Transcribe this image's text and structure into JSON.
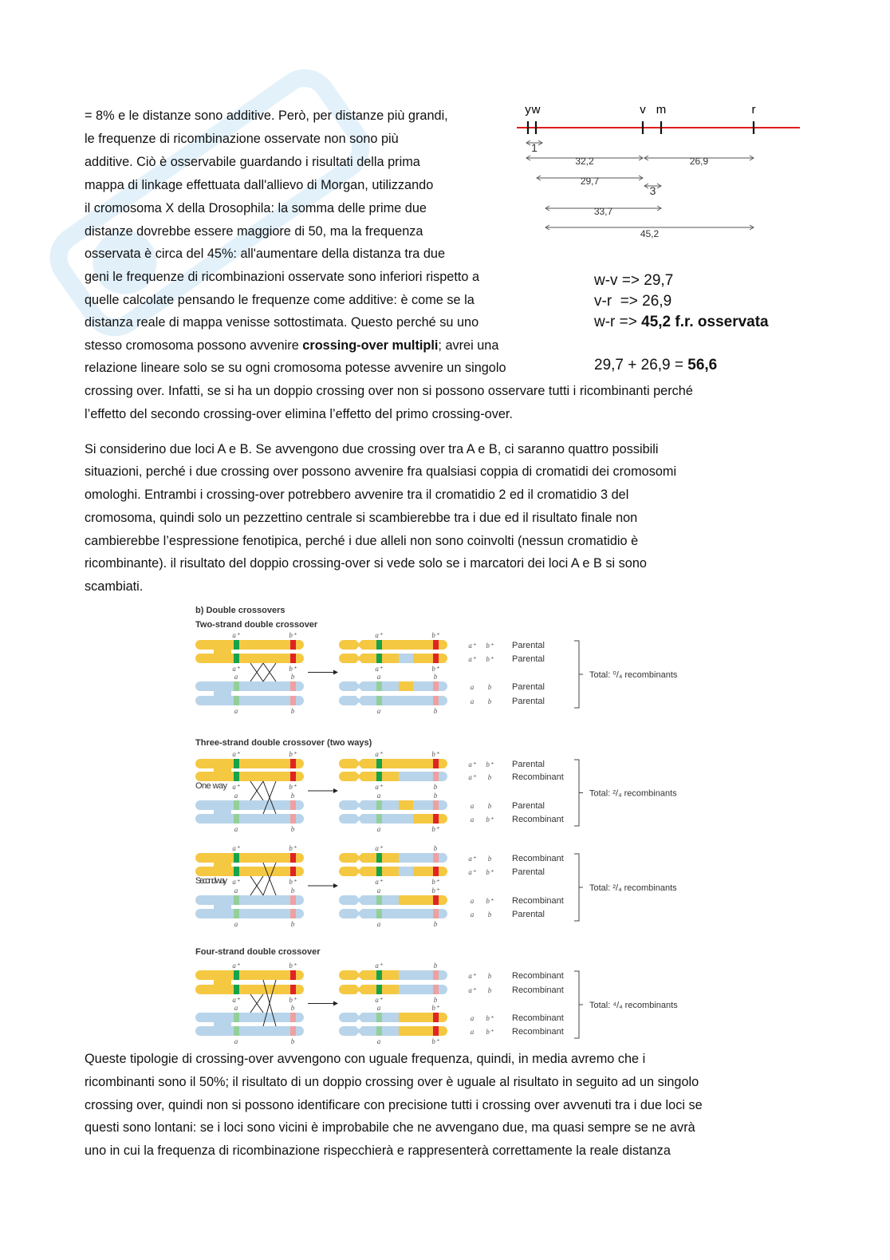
{
  "paragraphs": [
    {
      "lines": [
        [
          {
            "t": "= 8% e le distanze sono additive. Però, per distanze più grandi,"
          }
        ],
        [
          {
            "t": "le frequenze di ricombinazione osservate non sono più"
          }
        ],
        [
          {
            "t": "additive. Ciò è osservabile guardando i risultati della prima"
          }
        ],
        [
          {
            "t": "mappa di linkage effettuata dall'allievo di Morgan, utilizzando"
          }
        ],
        [
          {
            "t": "il cromosoma X della Drosophila: la somma delle prime due"
          }
        ],
        [
          {
            "t": "distanze dovrebbe essere maggiore di 50, ma la frequenza"
          }
        ],
        [
          {
            "t": "osservata è circa del 45%: all'aumentare della distanza tra due"
          }
        ],
        [
          {
            "t": "geni le frequenze di ricombinazioni osservate sono inferiori rispetto a"
          }
        ],
        [
          {
            "t": "quelle calcolate pensando le frequenze come additive: è come se la"
          }
        ],
        [
          {
            "t": "distanza reale di mappa venisse sottostimata. Questo perché su uno"
          }
        ],
        [
          {
            "t": "stesso cromosoma possono avvenire "
          },
          {
            "t": "crossing-over multipli",
            "b": true
          },
          {
            "t": "; avrei una"
          }
        ],
        [
          {
            "t": "relazione lineare solo se su ogni cromosoma potesse avvenire un singolo"
          }
        ],
        [
          {
            "t": "crossing over. Infatti, se si ha un doppio crossing over non si possono osservare tutti i ricombinanti perché"
          }
        ],
        [
          {
            "t": "l’effetto del secondo crossing-over elimina l’effetto del primo crossing-over."
          }
        ]
      ]
    },
    {
      "lines": [
        [
          {
            "t": "Si considerino due loci A e B. Se avvengono due crossing over tra A e B, ci saranno quattro possibili"
          }
        ],
        [
          {
            "t": "situazioni, perché i due crossing over possono avvenire fra qualsiasi coppia di cromatidi dei cromosomi"
          }
        ],
        [
          {
            "t": "omologhi. Entrambi i crossing-over potrebbero avvenire tra il cromatidio 2 ed il cromatidio 3 del"
          }
        ],
        [
          {
            "t": "cromosoma, quindi solo un pezzettino centrale si scambierebbe tra i due ed il risultato finale non"
          }
        ],
        [
          {
            "t": "cambierebbe l’espressione fenotipica, perché i due alleli non sono coinvolti (nessun cromatidio è"
          }
        ],
        [
          {
            "t": "ricombinante). il risultato del doppio crossing-over si vede solo se i marcatori dei loci A e B si sono"
          }
        ],
        [
          {
            "t": "scambiati."
          }
        ]
      ]
    },
    {
      "lines": [
        [
          {
            "t": "Queste tipologie di crossing-over avvengono con uguale frequenza, quindi, in media avremo che i"
          }
        ],
        [
          {
            "t": "ricombinanti sono il 50%; il risultato di un doppio crossing over è uguale al risultato in seguito ad un singolo"
          }
        ],
        [
          {
            "t": "crossing over, quindi non si possono identificare con precisione tutti i crossing over avvenuti tra i due loci se"
          }
        ],
        [
          {
            "t": "questi sono lontani: se i loci sono vicini è improbabile che ne avvengano due, ma quasi sempre se ne avrà"
          }
        ],
        [
          {
            "t": "uno in cui la frequenza di ricombinazione rispecchierà e rappresenterà correttamente la reale distanza"
          }
        ]
      ]
    }
  ],
  "linkage_map": {
    "loci": [
      "y",
      "w",
      "v",
      "m",
      "r"
    ],
    "distances": [
      {
        "from": "y",
        "to": "w",
        "label": "1"
      },
      {
        "from": "y",
        "to": "v",
        "label": "32,2"
      },
      {
        "from": "v",
        "to": "r",
        "label": "26,9"
      },
      {
        "from": "w",
        "to": "v",
        "label": "29,7"
      },
      {
        "from": "v",
        "to": "m",
        "label": "3"
      },
      {
        "from": "w",
        "to": "m",
        "label": "33,7"
      },
      {
        "from": "w",
        "to": "r",
        "label": "45,2"
      }
    ],
    "line_color": "#e01b1b"
  },
  "formulas": [
    [
      {
        "t": "w-v => 29,7"
      }
    ],
    [
      {
        "t": "v-r  => 26,9"
      }
    ],
    [
      {
        "t": "w-r => "
      },
      {
        "t": "45,2 f.r. osservata",
        "b": true
      }
    ],
    [
      {
        "t": "29,7 + 26,9 = "
      },
      {
        "t": "56,6",
        "b": true
      }
    ]
  ],
  "figure": {
    "title": "b) Double crossovers",
    "colors": {
      "yellow": "#f5c842",
      "blue": "#b8d4ea",
      "green": "#17a34a",
      "pale_green": "#93cf9a",
      "red": "#e02424",
      "pale_red": "#f0a0a0"
    },
    "panels": [
      {
        "title": "Two-strand double crossover",
        "way_label": "",
        "crossovers": [
          [
            2,
            3
          ],
          [
            2,
            3
          ]
        ],
        "pre_labels_top": [
          "a⁺",
          "b⁺"
        ],
        "pre_labels_mid": [
          [
            "a⁺",
            "b⁺"
          ],
          [
            "a",
            "b"
          ]
        ],
        "pre_labels_bottom": [
          "a",
          "b"
        ],
        "post": [
          {
            "a": "a⁺",
            "b": "b⁺",
            "regions": "YYY",
            "result": "Parental"
          },
          {
            "a": "a⁺",
            "b": "b⁺",
            "regions": "YBY",
            "result": "Parental"
          },
          {
            "a": "a",
            "b": "b",
            "regions": "BYB",
            "result": "Parental"
          },
          {
            "a": "a",
            "b": "b",
            "regions": "BBB",
            "result": "Parental"
          }
        ],
        "total": "Total: ⁰/₄ recombinants"
      },
      {
        "title": "Three-strand double crossover (two ways)",
        "way_label": "One way",
        "crossovers": [
          [
            2,
            3
          ],
          [
            2,
            4
          ]
        ],
        "pre_labels_top": [
          "a⁺",
          "b⁺"
        ],
        "pre_labels_mid": [
          [
            "a⁺",
            "b⁺"
          ],
          [
            "a",
            "b"
          ]
        ],
        "pre_labels_bottom": [
          "a",
          "b"
        ],
        "post": [
          {
            "a": "a⁺",
            "b": "b⁺",
            "regions": "YYY",
            "result": "Parental"
          },
          {
            "a": "a⁺",
            "b": "b",
            "regions": "YBB",
            "result": "Recombinant"
          },
          {
            "a": "a",
            "b": "b",
            "regions": "BYB",
            "result": "Parental"
          },
          {
            "a": "a",
            "b": "b⁺",
            "regions": "BBY",
            "result": "Recombinant"
          }
        ],
        "total": "Total: ²/₄ recombinants"
      },
      {
        "title": "",
        "way_label": "Second way",
        "crossovers": [
          [
            2,
            3
          ],
          [
            1,
            3
          ]
        ],
        "pre_labels_top": [
          "a⁺",
          "b⁺"
        ],
        "pre_labels_mid": [
          [
            "a⁺",
            "b⁺"
          ],
          [
            "a",
            "b"
          ]
        ],
        "pre_labels_bottom": [
          "a",
          "b"
        ],
        "post": [
          {
            "a": "a⁺",
            "b": "b",
            "regions": "YBB",
            "result": "Recombinant"
          },
          {
            "a": "a⁺",
            "b": "b⁺",
            "regions": "YBY",
            "result": "Parental"
          },
          {
            "a": "a",
            "b": "b⁺",
            "regions": "BYY",
            "result": "Recombinant"
          },
          {
            "a": "a",
            "b": "b",
            "regions": "BBB",
            "result": "Parental"
          }
        ],
        "total": "Total: ²/₄ recombinants"
      },
      {
        "title": "Four-strand double crossover",
        "way_label": "",
        "crossovers": [
          [
            2,
            3
          ],
          [
            1,
            4
          ]
        ],
        "pre_labels_top": [
          "a⁺",
          "b⁺"
        ],
        "pre_labels_mid": [
          [
            "a⁺",
            "b⁺"
          ],
          [
            "a",
            "b"
          ]
        ],
        "pre_labels_bottom": [
          "a",
          "b"
        ],
        "post": [
          {
            "a": "a⁺",
            "b": "b",
            "regions": "YBB",
            "result": "Recombinant"
          },
          {
            "a": "a⁺",
            "b": "b",
            "regions": "YBB",
            "result": "Recombinant"
          },
          {
            "a": "a",
            "b": "b⁺",
            "regions": "BYY",
            "result": "Recombinant"
          },
          {
            "a": "a",
            "b": "b⁺",
            "regions": "BYY",
            "result": "Recombinant"
          }
        ],
        "total": "Total: ⁴/₄ recombinants"
      }
    ]
  }
}
